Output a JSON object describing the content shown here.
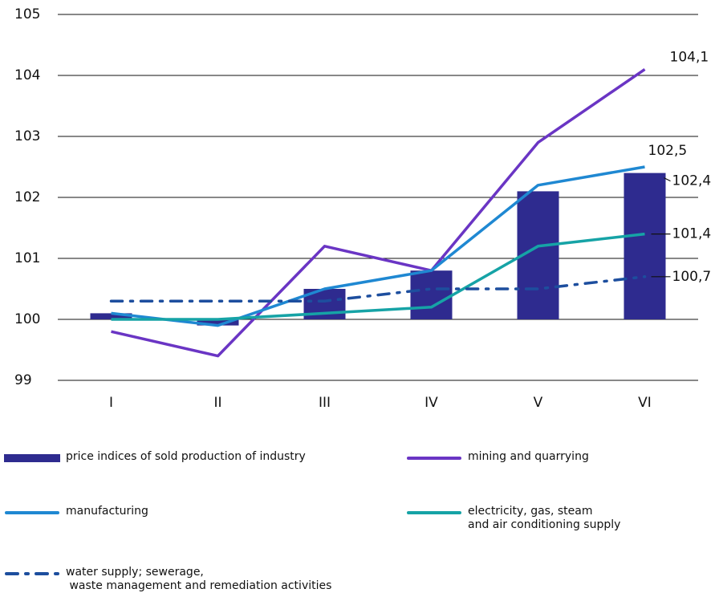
{
  "chart_data": {
    "type": "bar",
    "categories": [
      "I",
      "II",
      "III",
      "IV",
      "V",
      "VI"
    ],
    "ylim": [
      99,
      105
    ],
    "yticks": [
      99,
      100,
      101,
      102,
      103,
      104,
      105
    ],
    "grid": true,
    "baseline": 100,
    "series": [
      {
        "name": "price indices of sold production of industry",
        "type": "bar",
        "color": "#2e2b8f",
        "values": [
          100.1,
          99.9,
          100.5,
          100.8,
          102.1,
          102.4
        ],
        "value_labels": [
          null,
          null,
          null,
          null,
          null,
          "102,4"
        ]
      },
      {
        "name": "mining and quarrying",
        "type": "line",
        "color": "#6a35c4",
        "values": [
          99.8,
          99.4,
          101.2,
          100.8,
          102.9,
          104.1
        ],
        "value_labels": [
          null,
          null,
          null,
          null,
          null,
          "104,1"
        ]
      },
      {
        "name": "manufacturing",
        "type": "line",
        "color": "#1f88d2",
        "values": [
          100.1,
          99.9,
          100.5,
          100.8,
          102.2,
          102.5
        ],
        "value_labels": [
          null,
          null,
          null,
          null,
          null,
          "102,5"
        ]
      },
      {
        "name": "electricity, gas, steam\nand air conditioning supply",
        "type": "line",
        "color": "#16a3a6",
        "values": [
          100.0,
          100.0,
          100.1,
          100.2,
          101.2,
          101.4
        ],
        "value_labels": [
          null,
          null,
          null,
          null,
          null,
          "101,4"
        ]
      },
      {
        "name": "water supply; sewerage,\n waste management and remediation activities",
        "type": "line",
        "color": "#1d4e9e",
        "style": "dash-dot",
        "values": [
          100.3,
          100.3,
          100.3,
          100.5,
          100.5,
          100.7
        ],
        "value_labels": [
          null,
          null,
          null,
          null,
          null,
          "100,7"
        ]
      }
    ]
  }
}
